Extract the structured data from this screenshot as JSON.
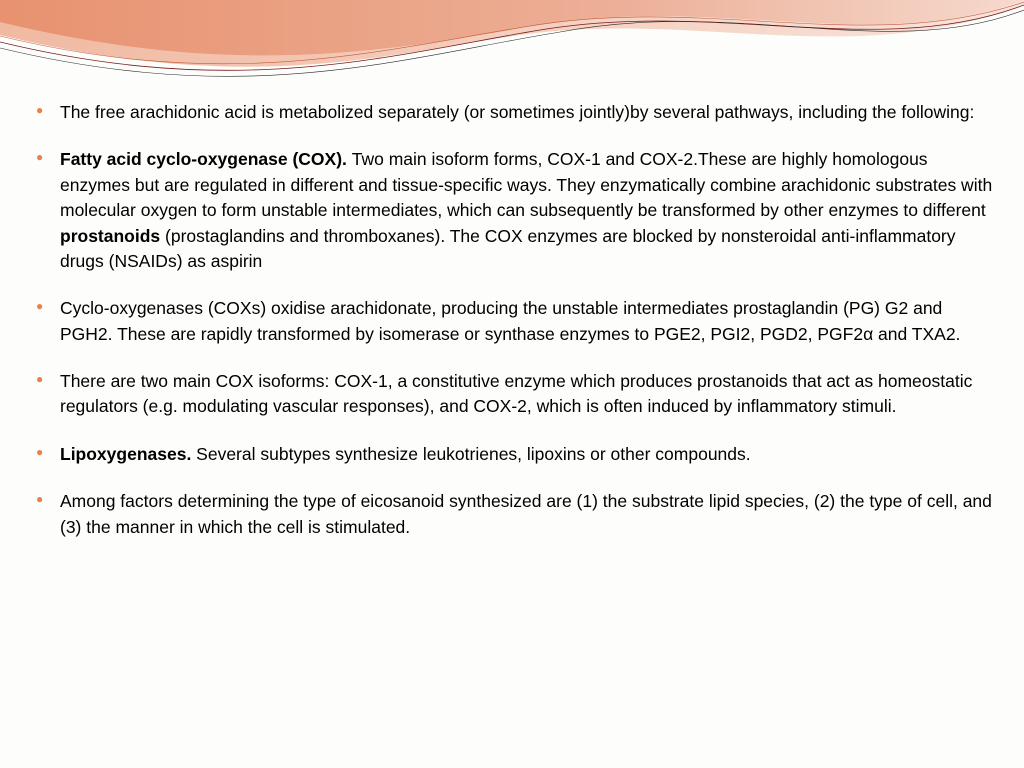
{
  "decoration": {
    "wave_primary": "#e89177",
    "wave_secondary": "#f3b9a3",
    "wave_line1": "#7b1d1d",
    "wave_line2": "#2a2a2a",
    "bullet_color": "#e8814a",
    "background": "#fdfdfb",
    "text_color": "#000000",
    "font_size_pt": 13,
    "line_height": 1.45
  },
  "bullets": [
    {
      "segments": [
        {
          "text": "The free arachidonic acid is metabolized separately (or sometimes jointly)by several pathways, including the following:",
          "bold": false
        }
      ]
    },
    {
      "segments": [
        {
          "text": "Fatty acid cyclo-oxygenase (COX). ",
          "bold": true
        },
        {
          "text": "Two main isoform forms, COX-1 and COX-2.These are highly homologous enzymes but are regulated in different and tissue-specific ways. They enzymatically combine arachidonic substrates with molecular oxygen to form unstable intermediates, which can subsequently be transformed by other enzymes to different ",
          "bold": false
        },
        {
          "text": "prostanoids",
          "bold": true
        },
        {
          "text": " (prostaglandins and thromboxanes). The COX enzymes are blocked by nonsteroidal anti-inflammatory drugs (NSAIDs) as aspirin",
          "bold": false
        }
      ]
    },
    {
      "segments": [
        {
          "text": "Cyclo-oxygenases (COXs) oxidise arachidonate, producing the unstable intermediates prostaglandin (PG) G2 and PGH2. These are rapidly transformed by isomerase or synthase enzymes to PGE2, PGI2, PGD2, PGF2α and TXA2.",
          "bold": false
        }
      ]
    },
    {
      "segments": [
        {
          "text": "There are two main COX isoforms: COX-1, a constitutive enzyme which produces prostanoids that act as homeostatic regulators (e.g. modulating vascular responses), and COX-2, which is often induced by inflammatory stimuli.",
          "bold": false
        }
      ]
    },
    {
      "segments": [
        {
          "text": "Lipoxygenases. ",
          "bold": true
        },
        {
          "text": "Several subtypes synthesize leukotrienes, lipoxins or other compounds.",
          "bold": false
        }
      ]
    },
    {
      "segments": [
        {
          "text": "Among factors determining the type of eicosanoid synthesized are (1) the substrate lipid species, (2) the type of cell, and (3) the manner in which the cell is stimulated.",
          "bold": false
        }
      ]
    }
  ]
}
